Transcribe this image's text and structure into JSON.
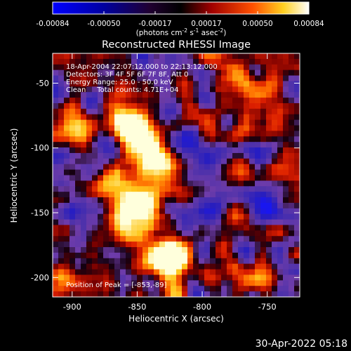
{
  "colorbar": {
    "ticks": [
      "-0.00084",
      "-0.00050",
      "-0.00017",
      "0.00017",
      "0.00050",
      "0.00084"
    ],
    "units_pre": "(photons cm",
    "units_exp1": "-2",
    "units_mid": " s",
    "units_exp2": "-1",
    "units_mid2": " asec",
    "units_exp3": "-2",
    "units_post": ")"
  },
  "chart_data": {
    "type": "heatmap",
    "title": "Reconstructed RHESSI Image",
    "xlabel": "Heliocentric X (arcsec)",
    "ylabel": "Heliocentric Y (arcsec)",
    "xlim": [
      -915,
      -725
    ],
    "ylim": [
      -215,
      -27
    ],
    "xticks": [
      -900,
      -850,
      -800,
      -750
    ],
    "yticks": [
      -50,
      -100,
      -150,
      -200
    ],
    "zlim": [
      -0.00084,
      0.00084
    ],
    "annotations": [
      "18-Apr-2004 22:07:12.000 to 22:13:12.000",
      "Detectors: 3F 4F 5F 6F 7F 8F, Att 0",
      "Energy Range: 25.0 - 50.0 keV",
      "Clean     Total counts: 4.71E+04"
    ],
    "peak_label": "Position of Peak = [-853,-89]",
    "bright_regions": [
      {
        "x": -858,
        "y": -77,
        "level": 0.95
      },
      {
        "x": -848,
        "y": -93,
        "level": 0.9
      },
      {
        "x": -836,
        "y": -108,
        "level": 0.85
      },
      {
        "x": -848,
        "y": -140,
        "level": 0.9
      },
      {
        "x": -858,
        "y": -155,
        "level": 0.7
      },
      {
        "x": -830,
        "y": -177,
        "level": 1.0
      },
      {
        "x": -820,
        "y": -190,
        "level": 0.9
      },
      {
        "x": -875,
        "y": -130,
        "level": 0.6
      },
      {
        "x": -905,
        "y": -200,
        "level": 0.55
      },
      {
        "x": -898,
        "y": -80,
        "level": 0.6
      },
      {
        "x": -768,
        "y": -200,
        "level": 0.5
      },
      {
        "x": -772,
        "y": -115,
        "level": 0.45
      }
    ],
    "dark_regions": [
      {
        "x": -818,
        "y": -98,
        "level": 0.45
      },
      {
        "x": -772,
        "y": -105,
        "level": 0.4
      },
      {
        "x": -750,
        "y": -145,
        "level": 0.4
      },
      {
        "x": -800,
        "y": -150,
        "level": 0.35
      }
    ]
  },
  "timestamp": "30-Apr-2022 05:18"
}
